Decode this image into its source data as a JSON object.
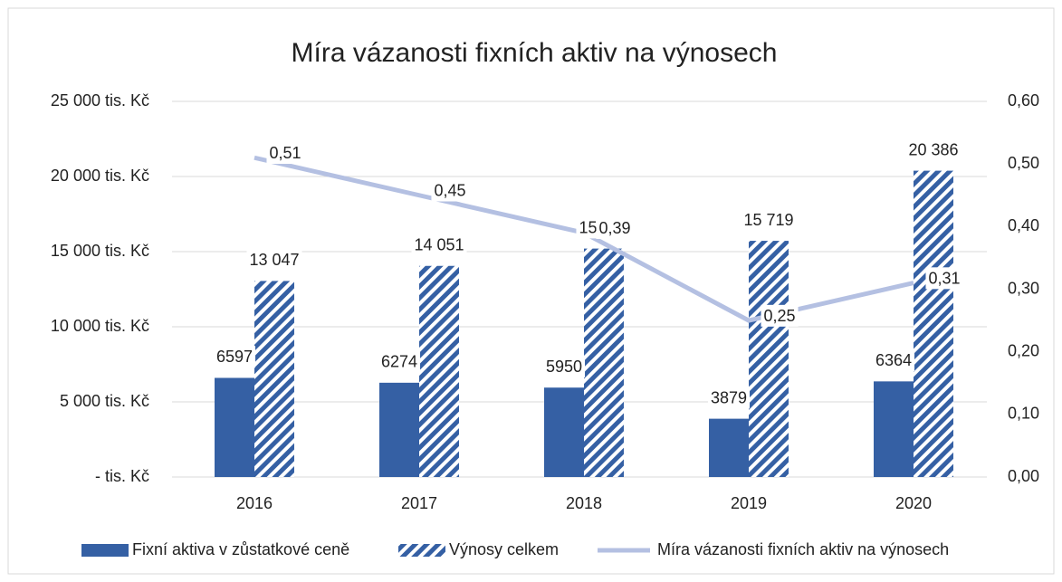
{
  "chart_data": {
    "type": "bar-line",
    "title": "Míra vázanosti fixních aktiv na výnosech",
    "categories": [
      "2016",
      "2017",
      "2018",
      "2019",
      "2020"
    ],
    "series": [
      {
        "name": "Fixní aktiva v zůstatkové ceně",
        "type": "bar",
        "color": "#3560a4",
        "values": [
          6597,
          6274,
          5950,
          3879,
          6364
        ]
      },
      {
        "name": "Výnosy celkem",
        "type": "bar",
        "pattern": "hatch",
        "color": "#3560a4",
        "values": [
          13047,
          14051,
          15204,
          15719,
          20386
        ],
        "value_labels": [
          "13 047",
          "14 051",
          "15 204",
          "15 719",
          "20 386"
        ]
      },
      {
        "name": "Míra vázanosti fixních aktiv na výnosech",
        "type": "line",
        "axis": "y2",
        "color": "#b4c0e2",
        "values": [
          0.51,
          0.45,
          0.39,
          0.25,
          0.31
        ],
        "value_labels": [
          "0,51",
          "0,45",
          "0,39",
          "0,25",
          "0,31"
        ]
      }
    ],
    "ylim": [
      0,
      25000
    ],
    "yticks": [
      {
        "value": 0,
        "label": "- tis. Kč"
      },
      {
        "value": 5000,
        "label": "5 000 tis. Kč"
      },
      {
        "value": 10000,
        "label": "10 000 tis. Kč"
      },
      {
        "value": 15000,
        "label": "15 000 tis. Kč"
      },
      {
        "value": 20000,
        "label": "20 000 tis. Kč"
      },
      {
        "value": 25000,
        "label": "25 000 tis. Kč"
      }
    ],
    "y2lim": [
      0,
      0.6
    ],
    "y2ticks": [
      {
        "value": 0,
        "label": "0,00"
      },
      {
        "value": 0.1,
        "label": "0,10"
      },
      {
        "value": 0.2,
        "label": "0,20"
      },
      {
        "value": 0.3,
        "label": "0,30"
      },
      {
        "value": 0.4,
        "label": "0,40"
      },
      {
        "value": 0.5,
        "label": "0,50"
      },
      {
        "value": 0.6,
        "label": "0,60"
      }
    ],
    "grid": true,
    "legend": "bottom"
  }
}
